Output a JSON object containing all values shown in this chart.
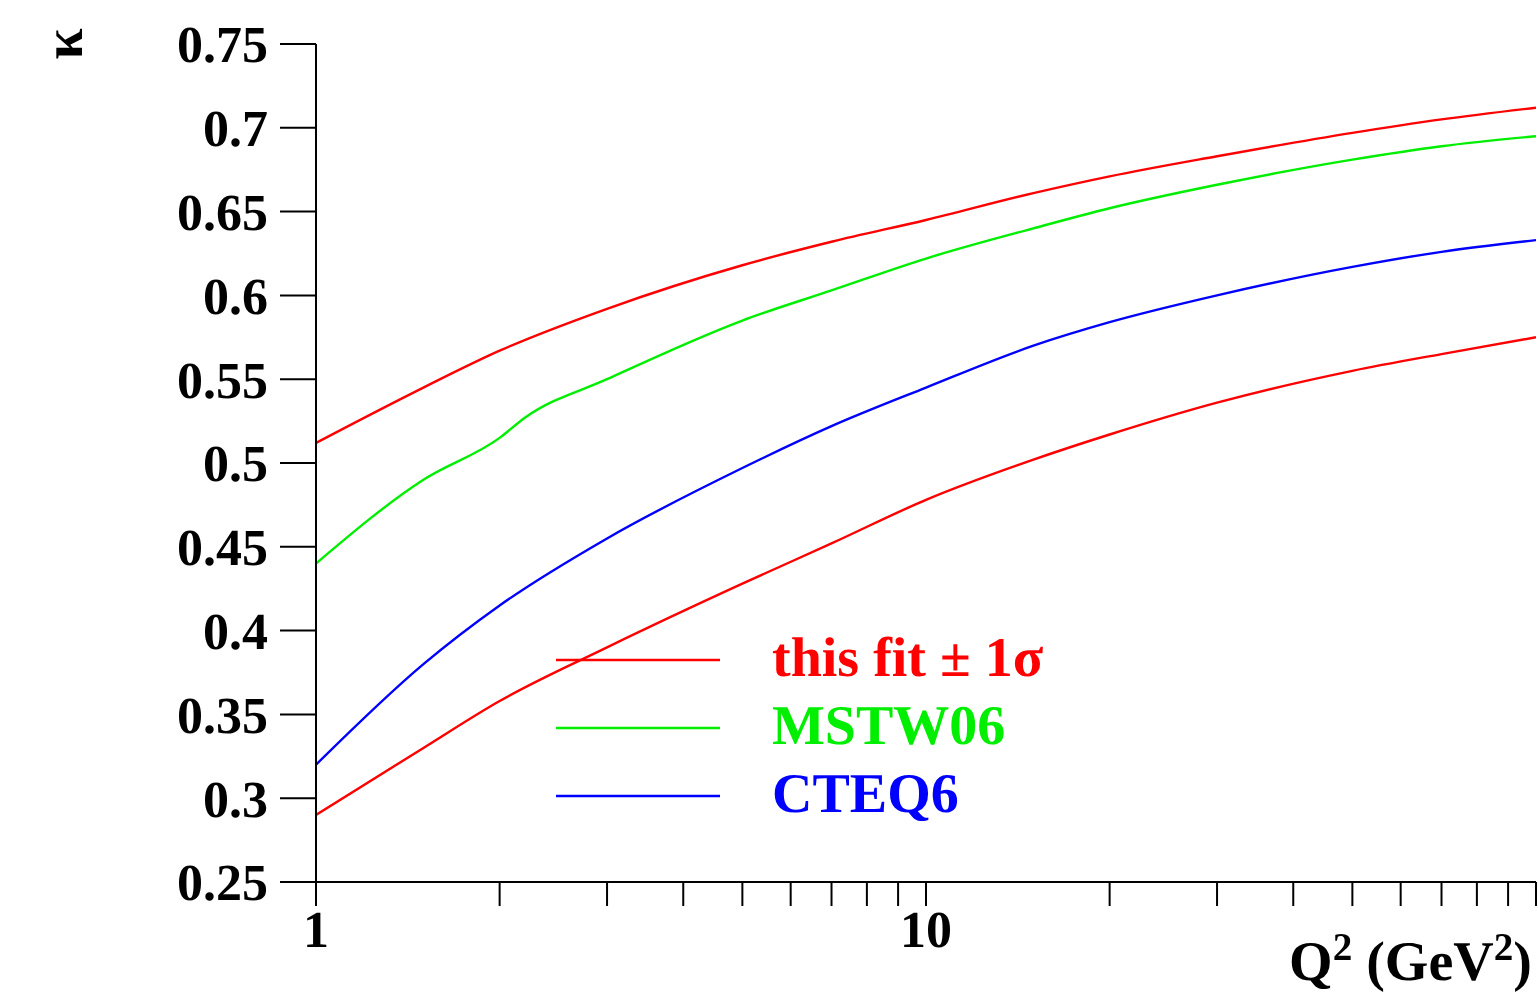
{
  "chart_data": {
    "type": "line",
    "xlabel": "Q$^{2}$ (GeV$^{2}$)",
    "ylabel": "κ",
    "log": "x",
    "xlim": [
      1,
      100
    ],
    "xticks": [
      1,
      {
        "value": 2,
        "label": null
      },
      {
        "value": 3,
        "label": null
      },
      {
        "value": 4,
        "label": null
      },
      {
        "value": 5,
        "label": null
      },
      {
        "value": 6,
        "label": null
      },
      {
        "value": 7,
        "label": null
      },
      {
        "value": 8,
        "label": null
      },
      {
        "value": 9,
        "label": null
      },
      10,
      {
        "value": 20,
        "label": null
      },
      {
        "value": 30,
        "label": null
      },
      {
        "value": 40,
        "label": null
      },
      {
        "value": 50,
        "label": null
      },
      {
        "value": 60,
        "label": null
      },
      {
        "value": 70,
        "label": null
      },
      {
        "value": 80,
        "label": null
      },
      {
        "value": 90,
        "label": null
      },
      {
        "value": 100,
        "label": null
      }
    ],
    "ylim": [
      0.25,
      0.75
    ],
    "yticks": [
      0.25,
      0.3,
      0.35,
      0.4,
      0.45,
      0.5,
      0.55,
      0.6,
      0.65,
      0.7,
      0.75
    ],
    "grid": false,
    "legend": "bottom",
    "marker": "none",
    "line_style": "solid",
    "x": [
      1,
      1.5,
      2,
      3,
      5,
      7,
      10,
      15,
      20,
      30,
      50,
      70,
      100
    ],
    "series": [
      {
        "name": "this fit ± 1σ",
        "color": "#ff0000",
        "values": [
          0.512,
          0.545,
          0.567,
          0.592,
          0.618,
          0.632,
          0.645,
          0.661,
          0.671,
          0.683,
          0.697,
          0.705,
          0.712
        ]
      },
      {
        "color": "#ff0000",
        "values": [
          0.29,
          0.33,
          0.358,
          0.39,
          0.428,
          0.452,
          0.478,
          0.502,
          0.517,
          0.536,
          0.555,
          0.565,
          0.575
        ]
      },
      {
        "name": "MSTW06",
        "color": "#00ee00",
        "x": [
          1,
          1.5,
          2,
          2.2,
          3,
          5,
          7,
          10,
          15,
          20,
          30,
          50,
          70,
          100
        ],
        "values": [
          0.44,
          0.49,
          0.515,
          0.527,
          0.55,
          0.585,
          0.603,
          0.622,
          0.64,
          0.652,
          0.666,
          0.681,
          0.689,
          0.695
        ]
      },
      {
        "name": "CTEQ6",
        "color": "#0000ff",
        "values": [
          0.32,
          0.38,
          0.415,
          0.455,
          0.497,
          0.522,
          0.545,
          0.57,
          0.584,
          0.6,
          0.617,
          0.626,
          0.633
        ]
      }
    ]
  }
}
